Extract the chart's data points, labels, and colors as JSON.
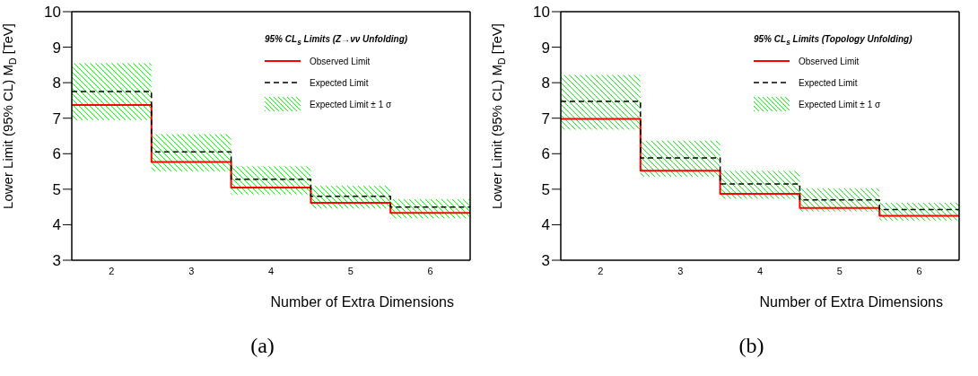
{
  "chart_data": [
    {
      "type": "line",
      "x": [
        1.5,
        2.5,
        2.5,
        3.5,
        3.5,
        4.5,
        4.5,
        5.5,
        5.5,
        6.5
      ],
      "xlim": [
        1.5,
        6.5
      ],
      "xticks": [
        2,
        3,
        4,
        5,
        6
      ],
      "xlabel": "Number of Extra Dimensions",
      "ylabel": "Lower Limit (95% CL) M$_{D}$ [TeV]",
      "legend_title": "95% CL$_{s}$ Limits (Z→νν Unfolding)",
      "ylim": [
        3,
        10
      ],
      "yticks": [
        3,
        4,
        5,
        6,
        7,
        8,
        9,
        10
      ],
      "legend": "top right",
      "annotations": [
        "Expected Limit ± 1 σ",
        "(a)"
      ],
      "series": [
        {
          "name": "Observed Limit",
          "line_style": "solid",
          "color": "#ff0000",
          "values": [
            7.37,
            7.37,
            5.77,
            5.77,
            5.05,
            5.05,
            4.62,
            4.62,
            4.33,
            4.33
          ]
        },
        {
          "name": "Expected Limit",
          "line_style": "dashed",
          "color": "#000000",
          "values": [
            7.75,
            7.75,
            6.05,
            6.05,
            5.28,
            5.28,
            4.8,
            4.8,
            4.5,
            4.5
          ],
          "lower": [
            6.95,
            6.95,
            5.5,
            5.5,
            4.85,
            4.85,
            4.45,
            4.45,
            4.18,
            4.18
          ],
          "upper": [
            8.55,
            8.55,
            6.55,
            6.55,
            5.65,
            5.65,
            5.1,
            5.1,
            4.72,
            4.72
          ]
        }
      ]
    },
    {
      "type": "line",
      "x": [
        1.5,
        2.5,
        2.5,
        3.5,
        3.5,
        4.5,
        4.5,
        5.5,
        5.5,
        6.5
      ],
      "xlim": [
        1.5,
        6.5
      ],
      "xticks": [
        2,
        3,
        4,
        5,
        6
      ],
      "xlabel": "Number of Extra Dimensions",
      "ylabel": "Lower Limit (95% CL) M$_{D}$ [TeV]",
      "legend_title": "95% CL$_{s}$ Limits (Topology Unfolding)",
      "ylim": [
        3,
        10
      ],
      "yticks": [
        3,
        4,
        5,
        6,
        7,
        8,
        9,
        10
      ],
      "legend": "top right",
      "annotations": [
        "Expected Limit ± 1 σ",
        "(b)"
      ],
      "series": [
        {
          "name": "Observed Limit",
          "line_style": "solid",
          "color": "#ff0000",
          "values": [
            6.98,
            6.98,
            5.52,
            5.52,
            4.87,
            4.87,
            4.47,
            4.47,
            4.25,
            4.25
          ]
        },
        {
          "name": "Expected Limit",
          "line_style": "dashed",
          "color": "#000000",
          "values": [
            7.47,
            7.47,
            5.88,
            5.88,
            5.15,
            5.15,
            4.7,
            4.7,
            4.43,
            4.43
          ],
          "lower": [
            6.68,
            6.68,
            5.35,
            5.35,
            4.73,
            4.73,
            4.37,
            4.37,
            4.12,
            4.12
          ],
          "upper": [
            8.22,
            8.22,
            6.37,
            6.37,
            5.52,
            5.52,
            5.03,
            5.03,
            4.62,
            4.62
          ]
        }
      ]
    }
  ]
}
